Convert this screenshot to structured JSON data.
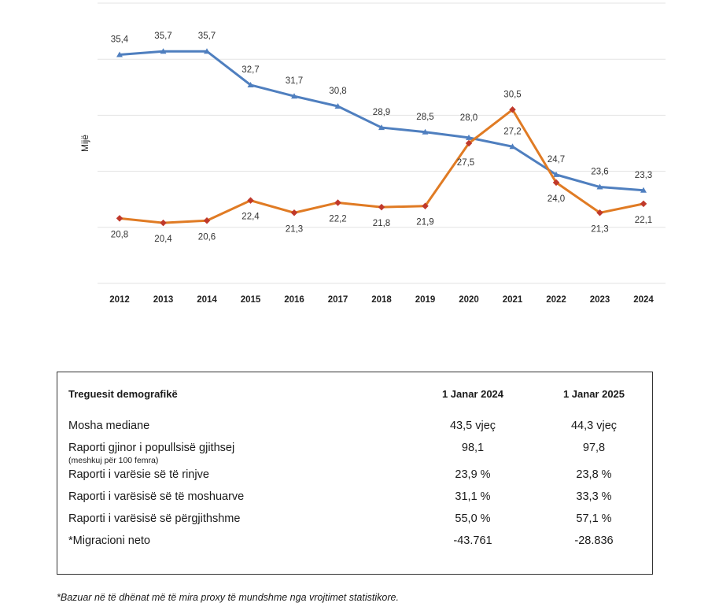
{
  "chart_data": {
    "type": "line",
    "categories": [
      "2012",
      "2013",
      "2014",
      "2015",
      "2016",
      "2017",
      "2018",
      "2019",
      "2020",
      "2021",
      "2022",
      "2023",
      "2024"
    ],
    "series": [
      {
        "name": "blue",
        "color": "#4f7fbf",
        "values": [
          35.4,
          35.7,
          35.7,
          32.7,
          31.7,
          30.8,
          28.9,
          28.5,
          28.0,
          27.2,
          24.7,
          23.6,
          23.3
        ],
        "labels": [
          "35,4",
          "35,7",
          "35,7",
          "32,7",
          "31,7",
          "30,8",
          "28,9",
          "28,5",
          "28,0",
          "27,2",
          "24,7",
          "23,6",
          "23,3"
        ]
      },
      {
        "name": "orange",
        "color": "#e07b24",
        "values": [
          20.8,
          20.4,
          20.6,
          22.4,
          21.3,
          22.2,
          21.8,
          21.9,
          27.5,
          30.5,
          24.0,
          21.3,
          22.1
        ],
        "labels": [
          "20,8",
          "20,4",
          "20,6",
          "22,4",
          "21,3",
          "22,2",
          "21,8",
          "21,9",
          "27,5",
          "30,5",
          "24,0",
          "21,3",
          "22,1"
        ]
      }
    ],
    "ylabel": "Mijë",
    "ylim": [
      15,
      40
    ]
  },
  "table": {
    "header": {
      "label": "Treguesit demografikë",
      "col1": "1 Janar 2024",
      "col2": "1 Janar 2025"
    },
    "rows": [
      {
        "label": "Mosha mediane",
        "v1": "43,5 vjeç",
        "v2": "44,3 vjeç"
      },
      {
        "label": "Raporti gjinor i popullsisë gjithsej",
        "sub": "(meshkuj për 100 femra)",
        "v1": "98,1",
        "v2": "97,8"
      },
      {
        "label": "Raporti i varësie së të rinjve",
        "v1": "23,9 %",
        "v2": "23,8 %"
      },
      {
        "label": "Raporti i varësisë së të moshuarve",
        "v1": "31,1 %",
        "v2": "33,3 %"
      },
      {
        "label": "Raporti i varësisë së përgjithshme",
        "v1": "55,0 %",
        "v2": "57,1 %"
      },
      {
        "label": "*Migracioni neto",
        "v1": "-43.761",
        "v2": "-28.836"
      }
    ]
  },
  "footnote": "*Bazuar në të dhënat më të mira proxy të mundshme nga vrojtimet statistikore."
}
